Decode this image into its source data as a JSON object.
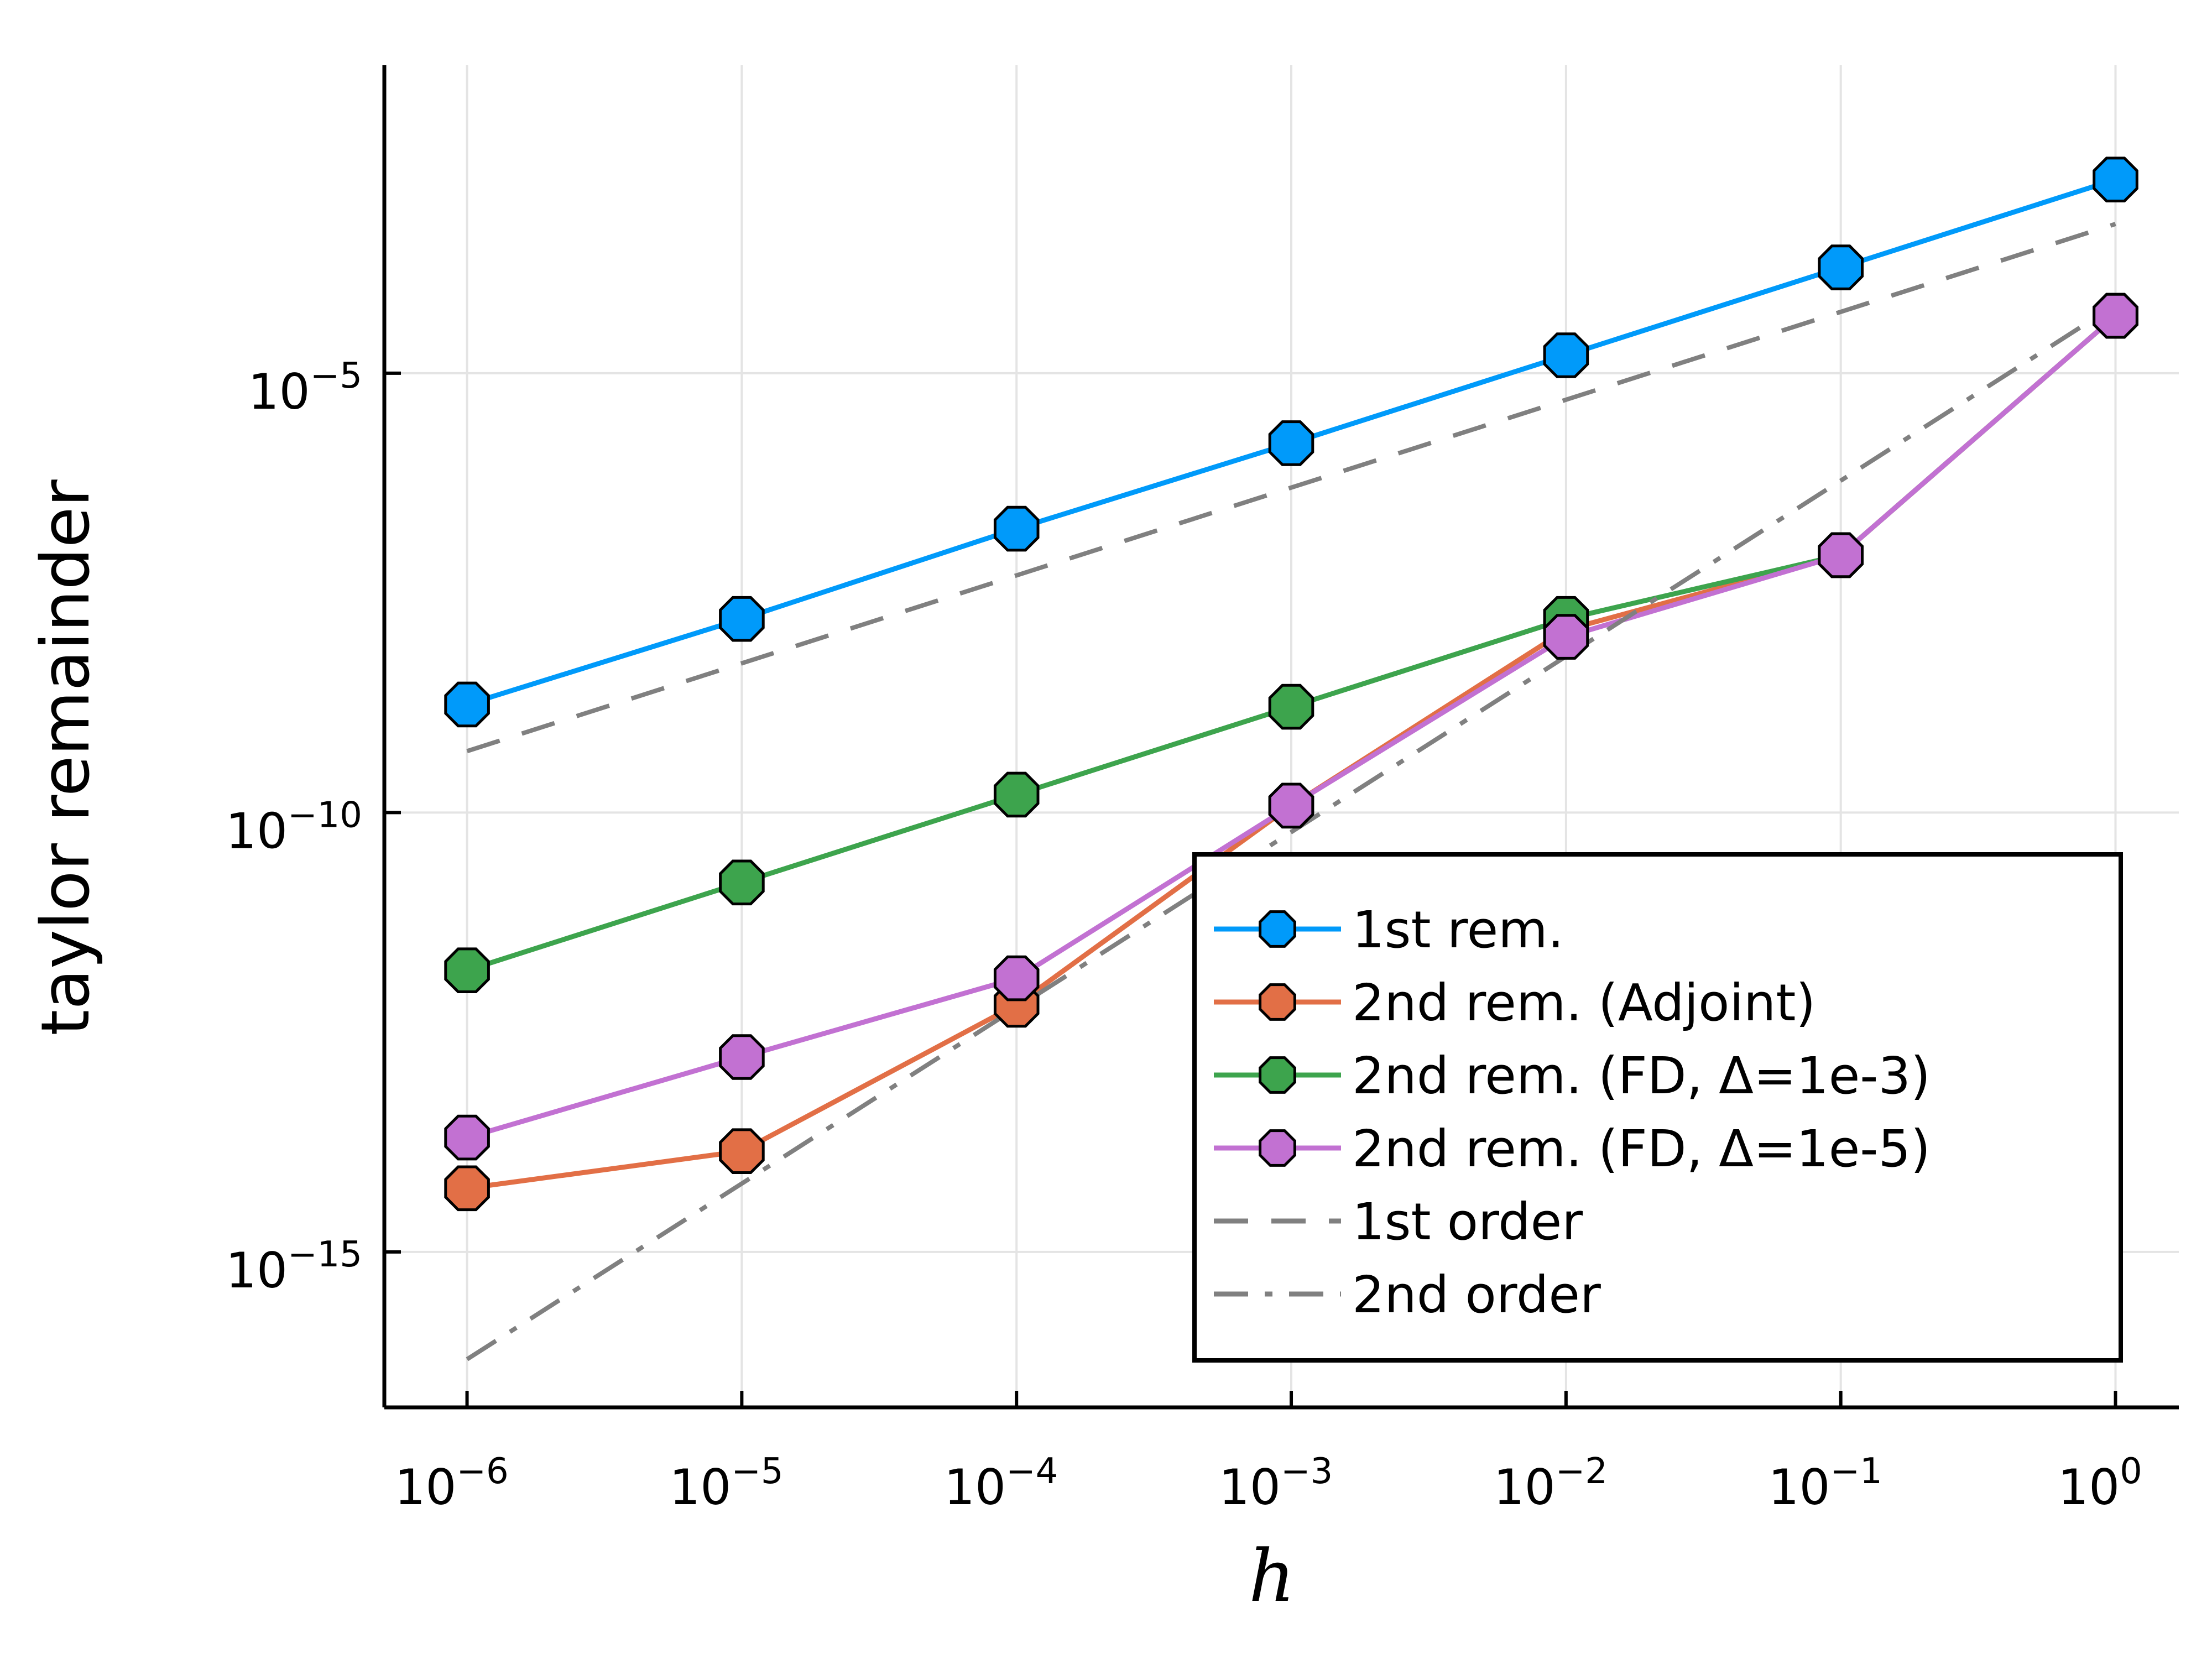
{
  "chart_data": {
    "type": "line",
    "title": "",
    "xlabel": "h",
    "ylabel": "taylor remainder",
    "x_scale": "log10",
    "y_scale": "log10",
    "x": [
      1e-06,
      1e-05,
      0.0001,
      0.001,
      0.01,
      0.1,
      1
    ],
    "xlim": [
      5e-07,
      1.7
    ],
    "ylim": [
      1.7e-17,
      0.032
    ],
    "x_ticks": [
      {
        "value": 1e-06,
        "base": "10",
        "exp": "−6"
      },
      {
        "value": 1e-05,
        "base": "10",
        "exp": "−5"
      },
      {
        "value": 0.0001,
        "base": "10",
        "exp": "−4"
      },
      {
        "value": 0.001,
        "base": "10",
        "exp": "−3"
      },
      {
        "value": 0.01,
        "base": "10",
        "exp": "−2"
      },
      {
        "value": 0.1,
        "base": "10",
        "exp": "−1"
      },
      {
        "value": 1,
        "base": "10",
        "exp": "0"
      }
    ],
    "y_ticks": [
      {
        "value": 1e-05,
        "base": "10",
        "exp": "−5"
      },
      {
        "value": 1e-10,
        "base": "10",
        "exp": "−10"
      },
      {
        "value": 1e-15,
        "base": "10",
        "exp": "−15"
      }
    ],
    "grid": true,
    "legend_position": "bottom-right",
    "series": [
      {
        "name": "1st rem.",
        "color": "#009AFA",
        "style": "solid",
        "marker": "octagon",
        "values": [
          1.7e-09,
          1.6e-08,
          1.7e-07,
          1.6e-06,
          1.6e-05,
          0.00016,
          0.0016
        ]
      },
      {
        "name": "2nd rem. (Adjoint)",
        "color": "#E26F46",
        "style": "solid",
        "marker": "octagon",
        "values": [
          5.3e-15,
          1.4e-14,
          6.5e-13,
          1.2e-10,
          1.2e-08,
          8.5e-08,
          4.5e-05
        ]
      },
      {
        "name": "2nd rem. (FD, Δ=1e-3)",
        "color": "#3DA44D",
        "style": "solid",
        "marker": "octagon",
        "values": [
          1.6e-12,
          1.6e-11,
          1.6e-10,
          1.6e-09,
          1.6e-08,
          8.5e-08,
          4.5e-05
        ]
      },
      {
        "name": "2nd rem. (FD, Δ=1e-5)",
        "color": "#C271D2",
        "style": "solid",
        "marker": "octagon",
        "values": [
          2e-14,
          1.65e-13,
          1.3e-12,
          1.2e-10,
          1e-08,
          8.5e-08,
          4.5e-05
        ]
      },
      {
        "name": "1st order",
        "color": "#808080",
        "style": "dashed",
        "marker": "none",
        "values": [
          5e-10,
          5e-09,
          5e-08,
          5e-07,
          5e-06,
          5e-05,
          0.0005
        ]
      },
      {
        "name": "2nd order",
        "color": "#808080",
        "style": "dashdot",
        "marker": "none",
        "values": [
          6e-17,
          6e-15,
          6e-13,
          6e-11,
          6e-09,
          6e-07,
          6e-05
        ]
      }
    ]
  }
}
